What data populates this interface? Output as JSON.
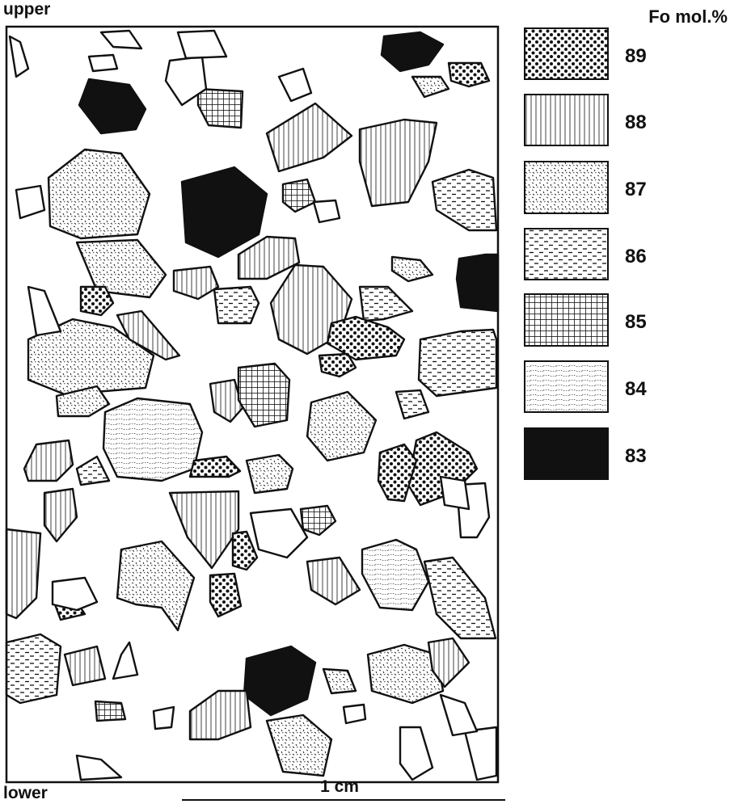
{
  "labels": {
    "top": "upper",
    "bottom": "lower",
    "scale": "1 cm"
  },
  "legend": {
    "title": "Fo mol.%",
    "items": [
      "89",
      "88",
      "87",
      "86",
      "85",
      "84",
      "83"
    ]
  }
}
